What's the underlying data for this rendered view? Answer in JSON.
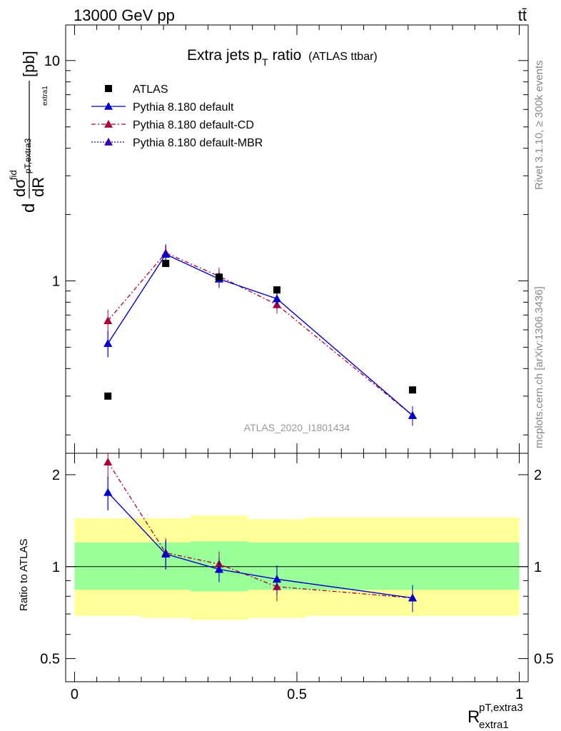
{
  "header": {
    "energy_label": "13000 GeV pp",
    "process_label": "tt̄"
  },
  "side_text": {
    "rivet": "Rivet 3.1.10, ≥ 300k events",
    "site": "mcplots.cern.ch [arXiv:1306.3436]"
  },
  "chart_data": {
    "type": "line",
    "title": "Extra jets p",
    "title_sub": "T",
    "title_suffix": " ratio",
    "title_note": "(ATLAS ttbar)",
    "analysis_id": "ATLAS_2020_I1801434",
    "ylabel": {
      "d": "d",
      "sigma": "dσ",
      "fid": "fid",
      "dR": "dR",
      "sub": "pT,extra3",
      "sub2": "extra1",
      "unit": "[pb]"
    },
    "xlabel": {
      "main": "R",
      "sup": "pT,extra3",
      "sub": "extra1"
    },
    "ratio_ylabel": "Ratio to ATLAS",
    "xlim": [
      -0.02,
      1.02
    ],
    "ylim_main": [
      0.165,
      14.5
    ],
    "ylim_ratio": [
      0.42,
      2.35
    ],
    "yscale": "log",
    "x_ticks": [
      "0",
      "0.5",
      "1"
    ],
    "y_ticks_main": [
      "1",
      "10"
    ],
    "y_ticks_ratio": [
      "0.5",
      "1",
      "2"
    ],
    "x": [
      0.075,
      0.205,
      0.325,
      0.455,
      0.76
    ],
    "bins": [
      [
        0.0,
        0.15
      ],
      [
        0.15,
        0.26
      ],
      [
        0.26,
        0.39
      ],
      [
        0.39,
        0.52
      ],
      [
        0.52,
        1.0
      ]
    ],
    "band_inner": [
      [
        0.84,
        1.2
      ],
      [
        0.84,
        1.2
      ],
      [
        0.83,
        1.21
      ],
      [
        0.84,
        1.2
      ],
      [
        0.84,
        1.2
      ]
    ],
    "band_outer": [
      [
        0.69,
        1.44
      ],
      [
        0.68,
        1.44
      ],
      [
        0.67,
        1.47
      ],
      [
        0.68,
        1.43
      ],
      [
        0.69,
        1.45
      ]
    ],
    "data": {
      "name": "ATLAS",
      "values": [
        0.3,
        1.2,
        1.04,
        0.91,
        0.32
      ]
    },
    "series": [
      {
        "name": "Pythia 8.180 default",
        "color": "#0000cc",
        "dash": "",
        "values": [
          0.52,
          1.32,
          1.02,
          0.83,
          0.245
        ],
        "errors": [
          0.07,
          0.13,
          0.09,
          0.07,
          0.025
        ],
        "ratio": [
          1.75,
          1.1,
          0.98,
          0.91,
          0.79
        ],
        "ratio_errors": [
          0.22,
          0.12,
          0.09,
          0.1,
          0.08
        ]
      },
      {
        "name": "Pythia 8.180 default-CD",
        "color": "#aa0033",
        "dash": "6,3,2,3",
        "values": [
          0.66,
          1.34,
          1.05,
          0.78,
          0.245
        ],
        "errors": [
          0.08,
          0.13,
          0.1,
          0.07,
          0.025
        ],
        "ratio": [
          2.2,
          1.11,
          1.02,
          0.86,
          0.79
        ],
        "ratio_errors": [
          0.27,
          0.13,
          0.1,
          0.09,
          0.08
        ]
      },
      {
        "name": "Pythia 8.180 default-MBR",
        "color": "#3300aa",
        "dash": "2,2",
        "values": [
          0.52,
          1.32,
          1.02,
          0.83,
          0.245
        ],
        "errors": [
          0.07,
          0.13,
          0.09,
          0.07,
          0.025
        ],
        "ratio": [
          1.75,
          1.1,
          0.98,
          0.91,
          0.79
        ],
        "ratio_errors": [
          0.22,
          0.12,
          0.09,
          0.1,
          0.08
        ]
      }
    ],
    "legend_position": "top-left"
  }
}
